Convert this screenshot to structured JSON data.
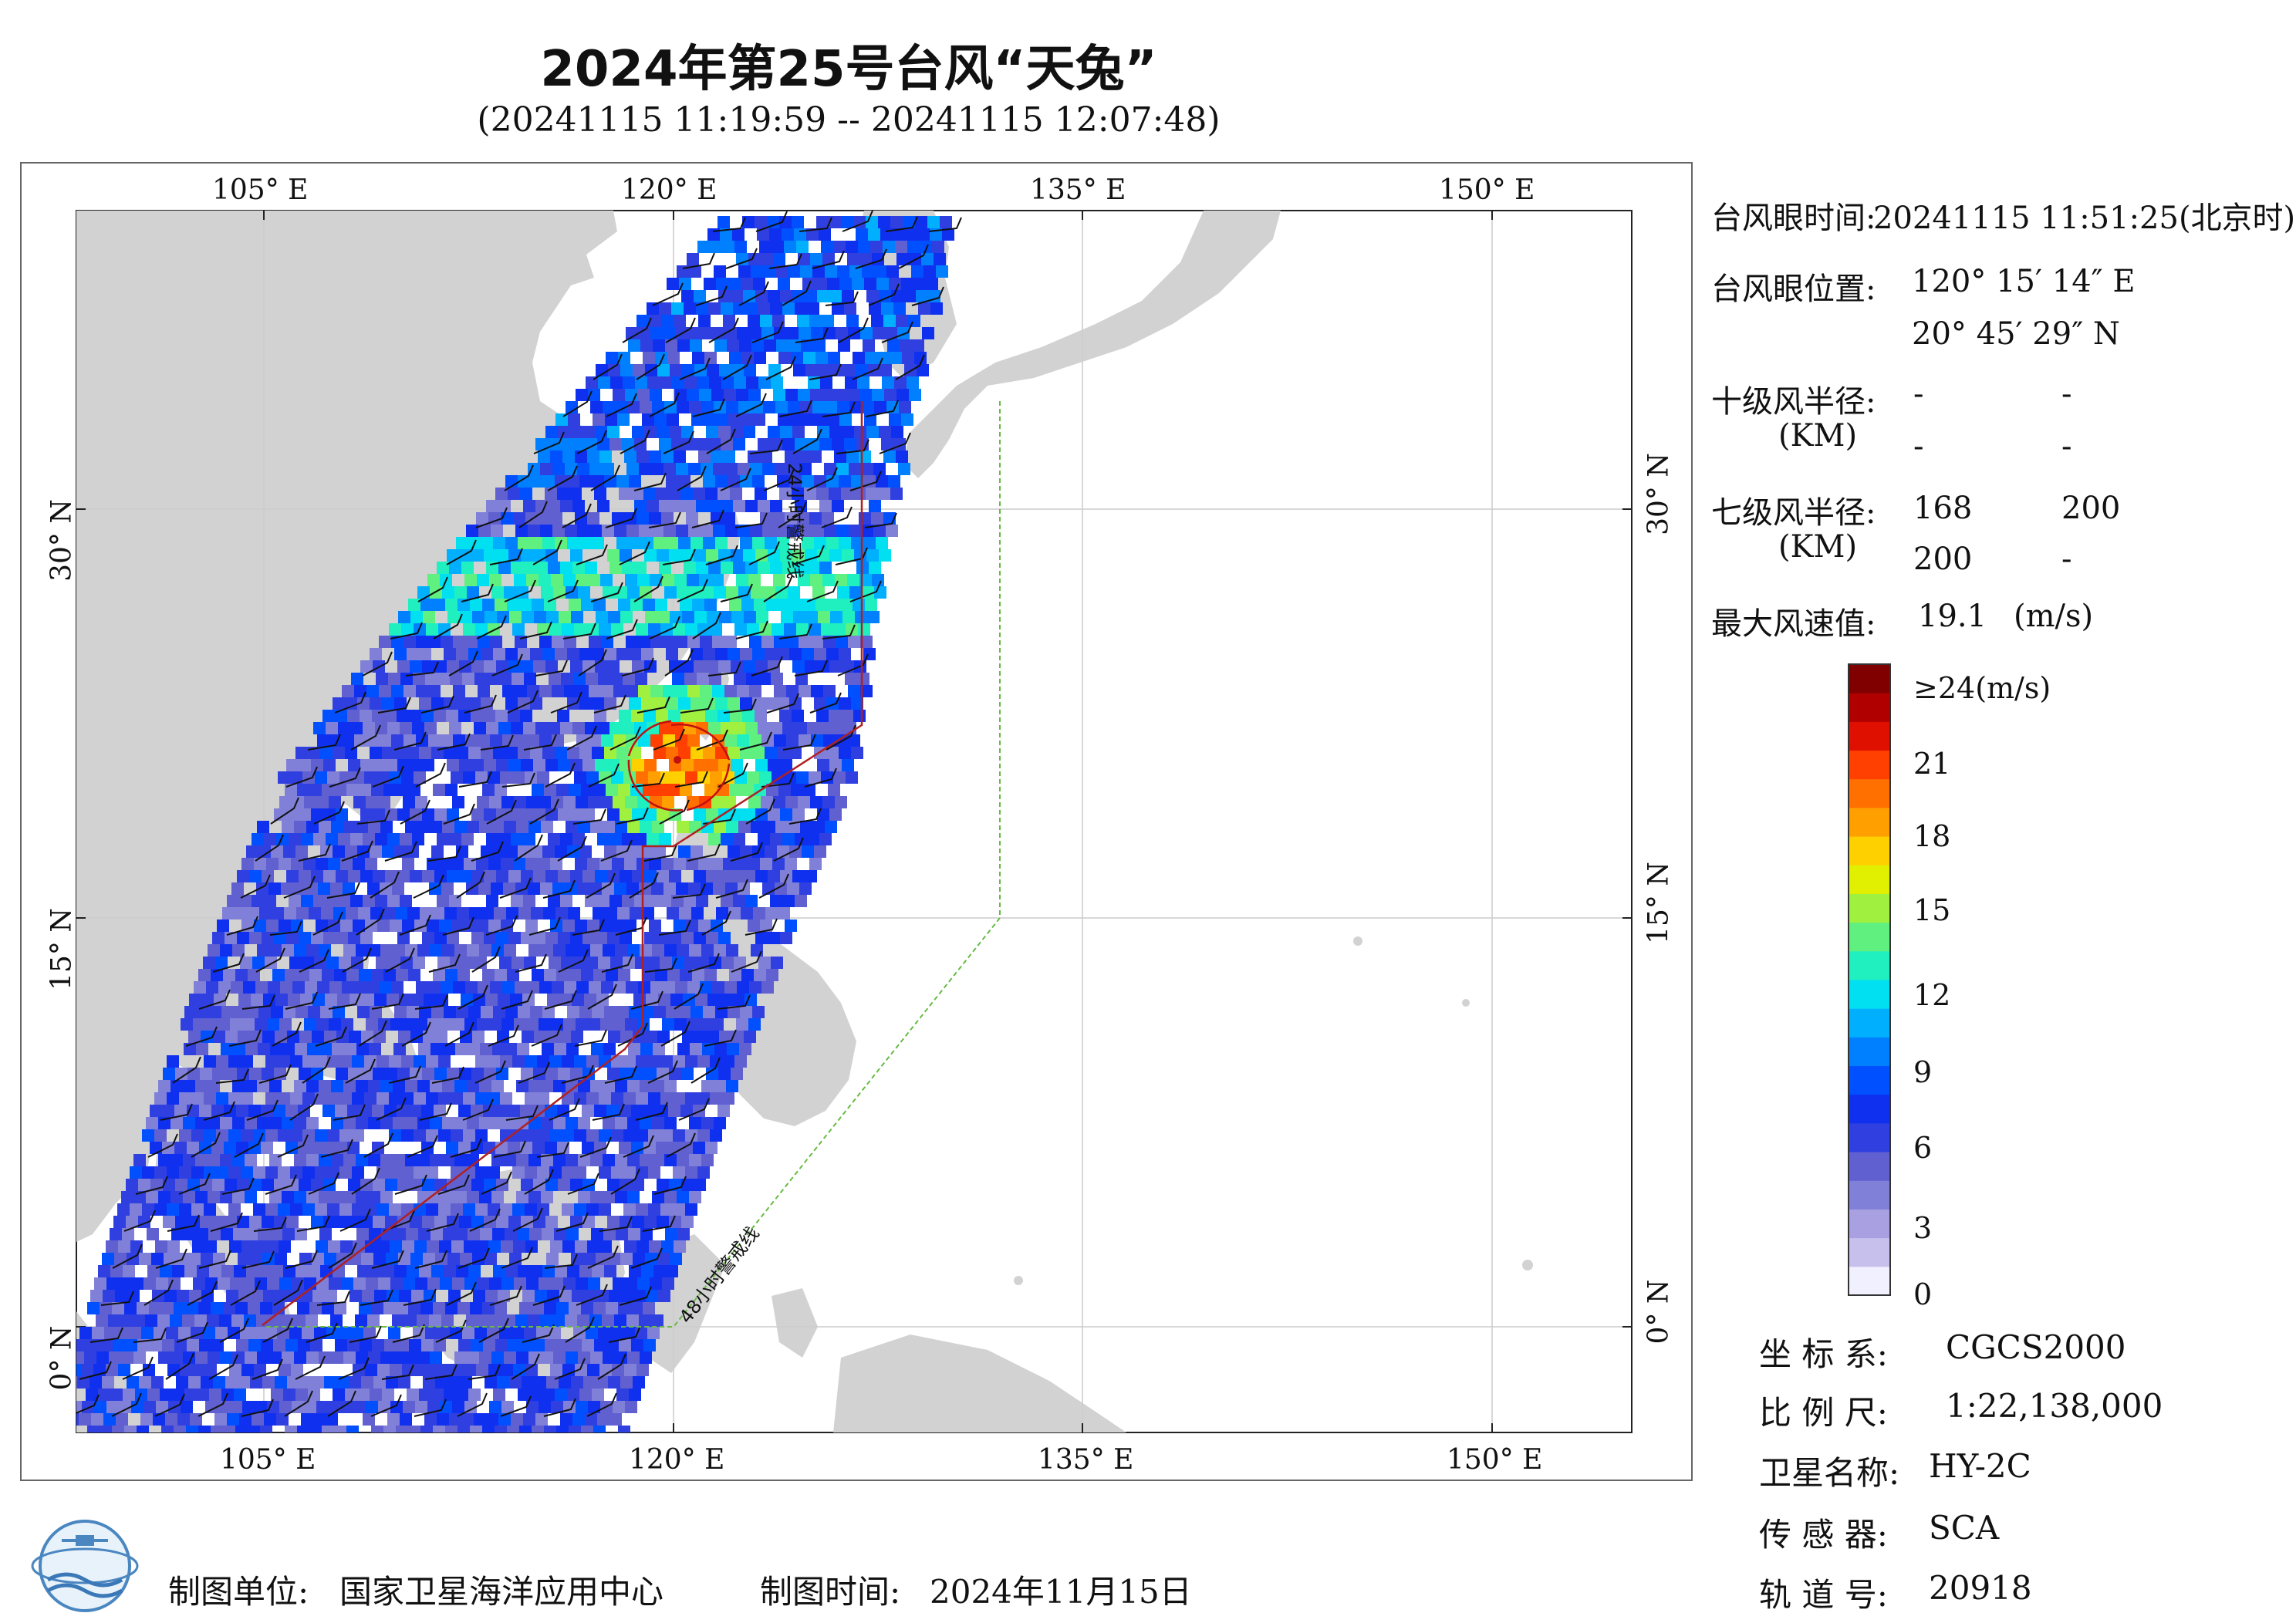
{
  "header": {
    "title": "2024年第25号台风“天兔”",
    "subtitle": "(20241115 11:19:59 -- 20241115 12:07:48)"
  },
  "axes": {
    "lon_top": [
      "105° E",
      "120° E",
      "135° E",
      "150° E"
    ],
    "lon_bottom": [
      "105° E",
      "120° E",
      "135° E",
      "150° E"
    ],
    "lat_left": [
      "30° N",
      "15° N",
      "0° N"
    ],
    "lat_right": [
      "30° N",
      "15° N",
      "0° N"
    ]
  },
  "map_labels": {
    "warn24": "24小时警戒线",
    "warn48": "48小时警戒线"
  },
  "info": {
    "eye_time_label": "台风眼时间:",
    "eye_time_value": "20241115 11:51:25(北京时)",
    "eye_pos_label": "台风眼位置:",
    "eye_lon": "120° 15′ 14″ E",
    "eye_lat": "20° 45′ 29″ N",
    "r10_label": "十级风半径:",
    "r10_unit": "(KM)",
    "r10_values": [
      "-",
      "-",
      "-",
      "-"
    ],
    "r7_label": "七级风半径:",
    "r7_unit": "(KM)",
    "r7_values": [
      "168",
      "200",
      "200",
      "-"
    ],
    "maxwind_label": "最大风速值:",
    "maxwind_value": "19.1",
    "maxwind_unit": "(m/s)"
  },
  "colorbar": {
    "labels": [
      "≥24(m/s)",
      "21",
      "18",
      "15",
      "12",
      "9",
      "6",
      "3",
      "0"
    ],
    "colors": [
      "#f0f0ff",
      "#c8c0ec",
      "#a8a0e0",
      "#8080d8",
      "#6060d0",
      "#3040e0",
      "#1030f0",
      "#0050ff",
      "#0080ff",
      "#00b0ff",
      "#00e0f0",
      "#20f0c0",
      "#60f080",
      "#a0f040",
      "#e0f000",
      "#ffd000",
      "#ffa000",
      "#ff7000",
      "#ff4000",
      "#e01000",
      "#b00000",
      "#800000"
    ]
  },
  "meta": {
    "crs_label": "坐 标 系:",
    "crs_value": "CGCS2000",
    "scale_label": "比 例 尺:",
    "scale_value": "1:22,138,000",
    "sat_label": "卫星名称:",
    "sat_value": "HY-2C",
    "sensor_label": "传 感 器:",
    "sensor_value": "SCA",
    "orbit_label": "轨 道 号:",
    "orbit_value": "20918"
  },
  "footer": {
    "org_label": "制图单位:",
    "org_value": "国家卫星海洋应用中心",
    "date_label": "制图时间:",
    "date_value": "2024年11月15日"
  },
  "colors": {
    "land": "#d2d2d2",
    "sea": "#ffffff",
    "warn24_line": "#b02020",
    "warn48_line": "#66bb44"
  }
}
